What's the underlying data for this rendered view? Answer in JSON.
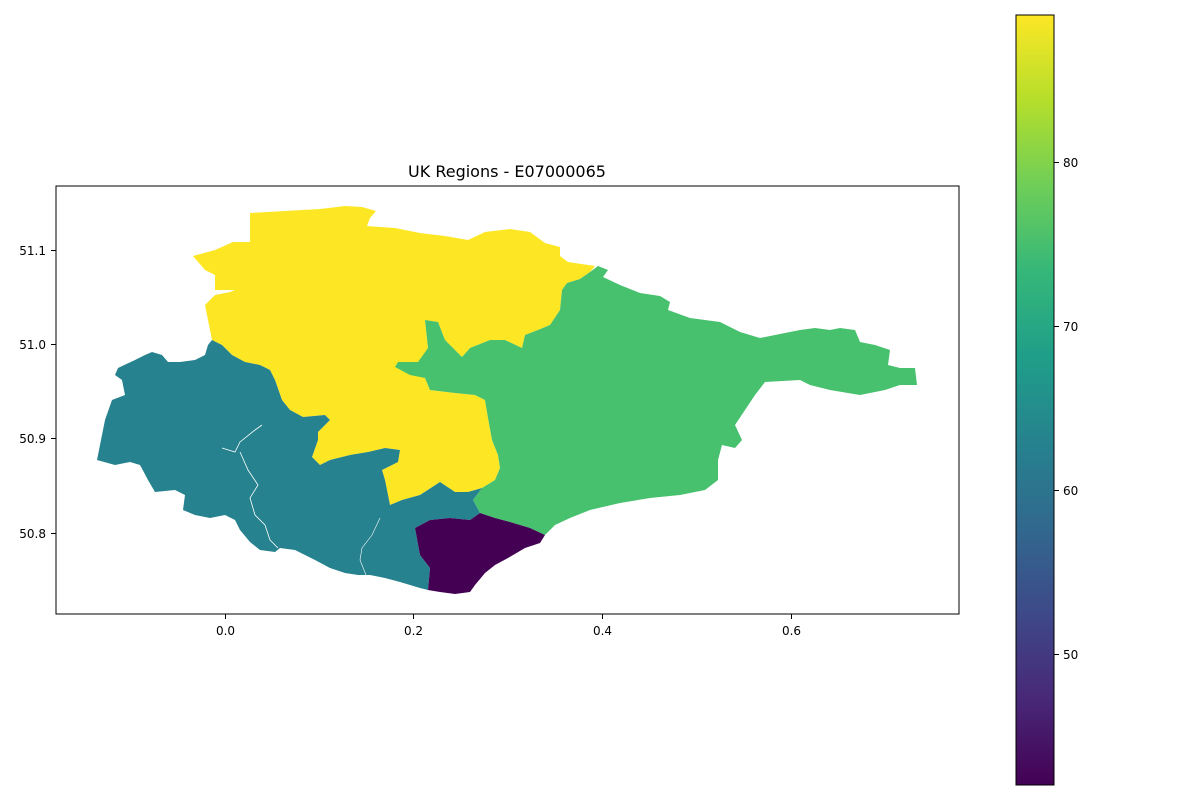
{
  "title": "UK Regions - E07000065",
  "x_axis": {
    "ticks": [
      "0.0",
      "0.2",
      "0.4",
      "0.6"
    ]
  },
  "y_axis": {
    "ticks": [
      "50.8",
      "50.9",
      "51.0",
      "51.1"
    ]
  },
  "regions": [
    {
      "id": "north",
      "value": 89,
      "color": "#fde725"
    },
    {
      "id": "east",
      "value": 77,
      "color": "#48c16e"
    },
    {
      "id": "west",
      "value": 63,
      "color": "#26828e"
    },
    {
      "id": "south",
      "value": 42,
      "color": "#440154"
    }
  ],
  "colorbar": {
    "min": 42,
    "max": 89,
    "ticks": [
      "50",
      "60",
      "70",
      "80"
    ],
    "colormap": "viridis",
    "stops": [
      "#440154",
      "#482878",
      "#3e4989",
      "#31688e",
      "#26828e",
      "#1f9e89",
      "#35b779",
      "#6ece58",
      "#b5de2b",
      "#fde725"
    ]
  }
}
